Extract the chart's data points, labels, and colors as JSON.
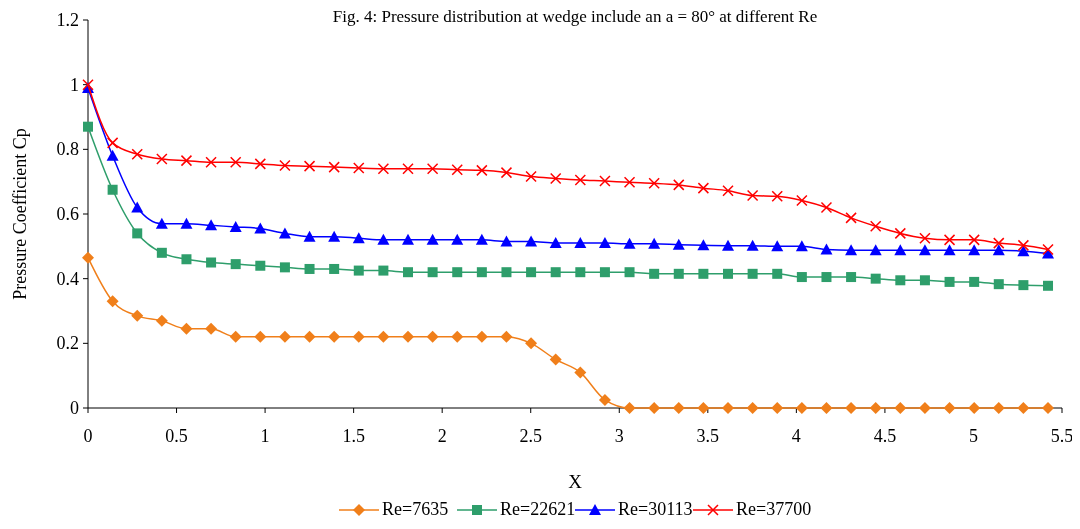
{
  "chart_data": {
    "type": "line",
    "title": "Fig. 4: Pressure distribution at wedge include an a = 80° at different Re",
    "xlabel": "X",
    "ylabel": "Pressure Coefficient Cp",
    "x": [
      0,
      0.139,
      0.278,
      0.417,
      0.556,
      0.695,
      0.834,
      0.973,
      1.112,
      1.251,
      1.39,
      1.529,
      1.668,
      1.807,
      1.946,
      2.085,
      2.224,
      2.363,
      2.502,
      2.641,
      2.78,
      2.919,
      3.058,
      3.197,
      3.336,
      3.475,
      3.614,
      3.753,
      3.892,
      4.031,
      4.17,
      4.309,
      4.448,
      4.587,
      4.726,
      4.865,
      5.004,
      5.143,
      5.282,
      5.421
    ],
    "series": [
      {
        "name": "Re=7635",
        "color": "#f07f1a",
        "marker": "diamond",
        "values": [
          0.465,
          0.33,
          0.285,
          0.27,
          0.245,
          0.245,
          0.22,
          0.22,
          0.22,
          0.22,
          0.22,
          0.22,
          0.22,
          0.22,
          0.22,
          0.22,
          0.22,
          0.22,
          0.2,
          0.15,
          0.11,
          0.025,
          0,
          0,
          0,
          0,
          0,
          0,
          0,
          0,
          0,
          0,
          0,
          0,
          0,
          0,
          0,
          0,
          0,
          0
        ]
      },
      {
        "name": "Re=22621",
        "color": "#2e9e6b",
        "marker": "square",
        "values": [
          0.87,
          0.675,
          0.54,
          0.48,
          0.46,
          0.45,
          0.445,
          0.44,
          0.435,
          0.43,
          0.43,
          0.425,
          0.425,
          0.42,
          0.42,
          0.42,
          0.42,
          0.42,
          0.42,
          0.42,
          0.42,
          0.42,
          0.42,
          0.415,
          0.415,
          0.415,
          0.415,
          0.415,
          0.415,
          0.405,
          0.405,
          0.405,
          0.4,
          0.395,
          0.395,
          0.39,
          0.39,
          0.383,
          0.38,
          0.378
        ]
      },
      {
        "name": "Re=30113",
        "color": "#0000ff",
        "marker": "triangle",
        "values": [
          0.99,
          0.78,
          0.62,
          0.57,
          0.57,
          0.565,
          0.56,
          0.555,
          0.54,
          0.53,
          0.53,
          0.525,
          0.52,
          0.52,
          0.52,
          0.52,
          0.52,
          0.515,
          0.515,
          0.51,
          0.51,
          0.51,
          0.508,
          0.508,
          0.505,
          0.503,
          0.502,
          0.502,
          0.5,
          0.5,
          0.49,
          0.488,
          0.488,
          0.488,
          0.488,
          0.488,
          0.488,
          0.488,
          0.485,
          0.478
        ]
      },
      {
        "name": "Re=37700",
        "color": "#ff0000",
        "marker": "cross",
        "values": [
          1.0,
          0.82,
          0.785,
          0.77,
          0.765,
          0.76,
          0.76,
          0.755,
          0.75,
          0.748,
          0.745,
          0.742,
          0.74,
          0.74,
          0.74,
          0.737,
          0.735,
          0.728,
          0.716,
          0.71,
          0.705,
          0.702,
          0.698,
          0.695,
          0.69,
          0.68,
          0.672,
          0.657,
          0.655,
          0.642,
          0.62,
          0.588,
          0.562,
          0.54,
          0.525,
          0.52,
          0.52,
          0.51,
          0.503,
          0.49
        ]
      }
    ],
    "xlim": [
      0,
      5.5
    ],
    "xticks": [
      0,
      0.5,
      1,
      1.5,
      2,
      2.5,
      3,
      3.5,
      4,
      4.5,
      5,
      5.5
    ],
    "ylim": [
      0,
      1.2
    ],
    "yticks": [
      0,
      0.2,
      0.4,
      0.6,
      0.8,
      1,
      1.2
    ],
    "legend": "bottom",
    "line_style": "solid"
  }
}
